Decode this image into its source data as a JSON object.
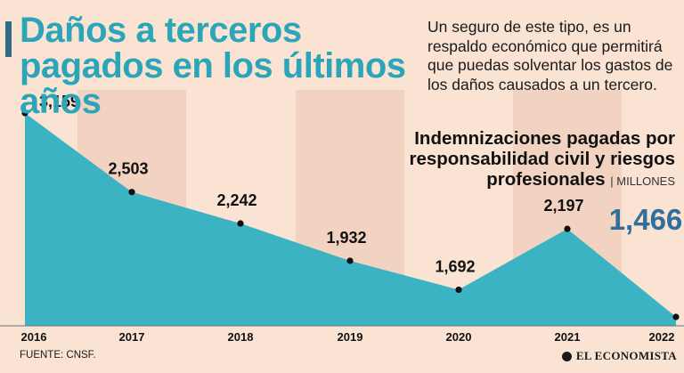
{
  "header": {
    "title": "Daños a terceros pagados en los últimos años",
    "intro": "Un seguro de este tipo, es un respaldo económico que permitirá que puedas solventar los gastos de los daños causados a un tercero."
  },
  "chart_data": {
    "type": "area",
    "title": "Indemnizaciones pagadas por responsabilidad civil y riesgos profesionales",
    "unit": "| MILLONES",
    "categories": [
      "2016",
      "2017",
      "2018",
      "2019",
      "2020",
      "2021",
      "2022"
    ],
    "values": [
      3159,
      2503,
      2242,
      1932,
      1692,
      2197,
      1466
    ],
    "labels": [
      "3,159",
      "2,503",
      "2,242",
      "1,932",
      "1,692",
      "2,197",
      "1,466"
    ],
    "highlight_index": 6,
    "ylim": [
      1466,
      3159
    ],
    "grid": false,
    "colors": {
      "area": "#3bb3c3",
      "band_light": "#fbe3d3",
      "band_dark": "#f2d3c1",
      "highlight": "#2f6f9a",
      "text": "#111111"
    }
  },
  "footer": {
    "source": "FUENTE: CNSF.",
    "brand": "EL ECONOMISTA"
  }
}
